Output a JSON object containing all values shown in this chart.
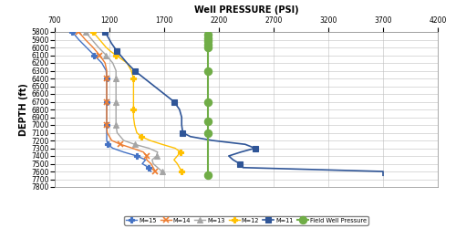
{
  "title": "Well PRESSURE (PSI)",
  "xlabel": "Well PRESSURE (PSI)",
  "ylabel": "DEPTH (ft)",
  "xlim": [
    700,
    4200
  ],
  "ylim": [
    7800,
    5800
  ],
  "xticks": [
    700,
    1200,
    1700,
    2200,
    2700,
    3200,
    3700,
    4200
  ],
  "yticks": [
    5800,
    5900,
    6000,
    6100,
    6200,
    6300,
    6400,
    6500,
    6600,
    6700,
    6800,
    6900,
    7000,
    7100,
    7200,
    7300,
    7400,
    7500,
    7600,
    7700,
    7800
  ],
  "series": {
    "M=15": {
      "color": "#4472C4",
      "marker": "P",
      "markersize": 4,
      "linewidth": 1.0,
      "depth": [
        5800,
        5900,
        6000,
        6100,
        6200,
        6300,
        6400,
        6500,
        6600,
        6700,
        6800,
        6900,
        7000,
        7100,
        7200,
        7250,
        7300,
        7350,
        7400,
        7450,
        7500,
        7550,
        7600
      ],
      "pressure": [
        860,
        920,
        990,
        1060,
        1130,
        1170,
        1175,
        1175,
        1175,
        1175,
        1175,
        1175,
        1175,
        1175,
        1175,
        1185,
        1230,
        1330,
        1450,
        1530,
        1500,
        1560,
        1580
      ]
    },
    "M=14": {
      "color": "#ED7D31",
      "marker": "x",
      "markersize": 5,
      "linewidth": 1.0,
      "depth": [
        5800,
        5900,
        6000,
        6100,
        6200,
        6300,
        6400,
        6500,
        6600,
        6700,
        6800,
        6900,
        7000,
        7100,
        7200,
        7250,
        7300,
        7350,
        7400,
        7450,
        7500,
        7600
      ],
      "pressure": [
        920,
        980,
        1050,
        1110,
        1160,
        1175,
        1175,
        1175,
        1175,
        1175,
        1175,
        1175,
        1175,
        1180,
        1220,
        1300,
        1410,
        1510,
        1540,
        1540,
        1580,
        1620
      ]
    },
    "M=13": {
      "color": "#A5A5A5",
      "marker": "^",
      "markersize": 4,
      "linewidth": 1.0,
      "depth": [
        5800,
        5900,
        6000,
        6100,
        6200,
        6300,
        6400,
        6500,
        6600,
        6700,
        6800,
        6900,
        7000,
        7100,
        7200,
        7250,
        7300,
        7350,
        7400,
        7450,
        7500,
        7600
      ],
      "pressure": [
        980,
        1040,
        1100,
        1170,
        1230,
        1260,
        1260,
        1260,
        1260,
        1260,
        1260,
        1260,
        1260,
        1270,
        1330,
        1430,
        1560,
        1640,
        1630,
        1590,
        1600,
        1680
      ]
    },
    "M=12": {
      "color": "#FFC000",
      "marker": "P",
      "markersize": 4,
      "linewidth": 1.0,
      "depth": [
        5800,
        5900,
        6000,
        6050,
        6100,
        6150,
        6200,
        6300,
        6400,
        6500,
        6600,
        6700,
        6800,
        6900,
        7000,
        7100,
        7150,
        7200,
        7250,
        7300,
        7350,
        7400,
        7450,
        7500,
        7600
      ],
      "pressure": [
        1050,
        1110,
        1170,
        1210,
        1260,
        1310,
        1360,
        1400,
        1420,
        1420,
        1420,
        1420,
        1420,
        1420,
        1430,
        1450,
        1490,
        1570,
        1680,
        1800,
        1850,
        1820,
        1790,
        1820,
        1860
      ]
    },
    "M=11": {
      "color": "#2F5597",
      "marker": "s",
      "markersize": 5,
      "linewidth": 1.2,
      "depth": [
        5800,
        5900,
        5950,
        6000,
        6050,
        6100,
        6150,
        6200,
        6300,
        6400,
        6500,
        6600,
        6700,
        6800,
        6900,
        7000,
        7100,
        7150,
        7200,
        7250,
        7300,
        7350,
        7400,
        7450,
        7500,
        7550,
        7600,
        7650
      ],
      "pressure": [
        1160,
        1200,
        1220,
        1245,
        1270,
        1300,
        1330,
        1360,
        1430,
        1520,
        1610,
        1700,
        1790,
        1840,
        1860,
        1860,
        1870,
        1940,
        2140,
        2440,
        2530,
        2400,
        2290,
        2330,
        2390,
        2420,
        3700,
        3700
      ]
    },
    "Field Well Pressure": {
      "color": "#70AD47",
      "marker": "o",
      "markersize": 6,
      "linewidth": 1.5,
      "depth": [
        5840,
        5880,
        5920,
        5960,
        6000,
        6300,
        6700,
        6950,
        7100,
        7650
      ],
      "pressure": [
        2100,
        2100,
        2100,
        2100,
        2100,
        2100,
        2100,
        2100,
        2100,
        2100
      ]
    }
  },
  "legend_order": [
    "M=15",
    "M=14",
    "M=13",
    "M=12",
    "M=11",
    "Field Well Pressure"
  ],
  "background_color": "#FFFFFF",
  "grid_color": "#C0C0C0"
}
